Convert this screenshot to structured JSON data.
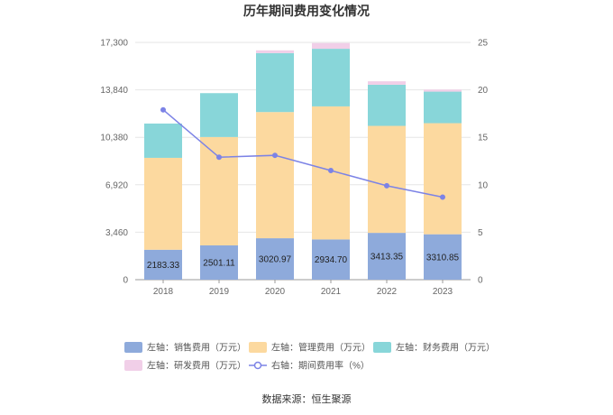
{
  "chart_data": {
    "type": "bar",
    "stacked": true,
    "title": "历年期间费用变化情况",
    "categories": [
      "2018",
      "2019",
      "2020",
      "2021",
      "2022",
      "2023"
    ],
    "left_axis": {
      "ticks": [
        0,
        3460,
        6920,
        10380,
        13840,
        17300
      ],
      "tick_labels": [
        "0",
        "3,460",
        "6,920",
        "10,380",
        "13,840",
        "17,300"
      ],
      "ylim": [
        0,
        17300
      ]
    },
    "right_axis": {
      "ticks": [
        0,
        5,
        10,
        15,
        20,
        25
      ],
      "tick_labels": [
        "0",
        "5",
        "10",
        "15",
        "20",
        "25"
      ],
      "ylim": [
        0,
        25
      ]
    },
    "series": [
      {
        "name": "左轴：销售费用（万元）",
        "axis": "left",
        "color": "#8eaadb",
        "values": [
          2183.33,
          2501.11,
          3020.97,
          2934.7,
          3413.35,
          3310.85
        ],
        "labels": [
          "2183.33",
          "2501.11",
          "3020.97",
          "2934.70",
          "3413.35",
          "3310.85"
        ]
      },
      {
        "name": "左轴：管理费用（万元）",
        "axis": "left",
        "color": "#fcd99f",
        "values": [
          6700,
          7900,
          9200,
          9700,
          7800,
          8100
        ]
      },
      {
        "name": "左轴：财务费用（万元）",
        "axis": "left",
        "color": "#88d6d9",
        "values": [
          2500,
          3200,
          4300,
          4200,
          3000,
          2300
        ]
      },
      {
        "name": "左轴：研发费用（万元）",
        "axis": "left",
        "color": "#f1cfe8",
        "values": [
          0,
          0,
          200,
          420,
          250,
          150
        ]
      },
      {
        "name": "右轴：期间费用率（%）",
        "axis": "right",
        "type": "line",
        "color": "#7c83e6",
        "values": [
          17.9,
          12.9,
          13.1,
          11.5,
          9.9,
          8.7
        ]
      }
    ]
  },
  "source_text": "数据来源：恒生聚源"
}
